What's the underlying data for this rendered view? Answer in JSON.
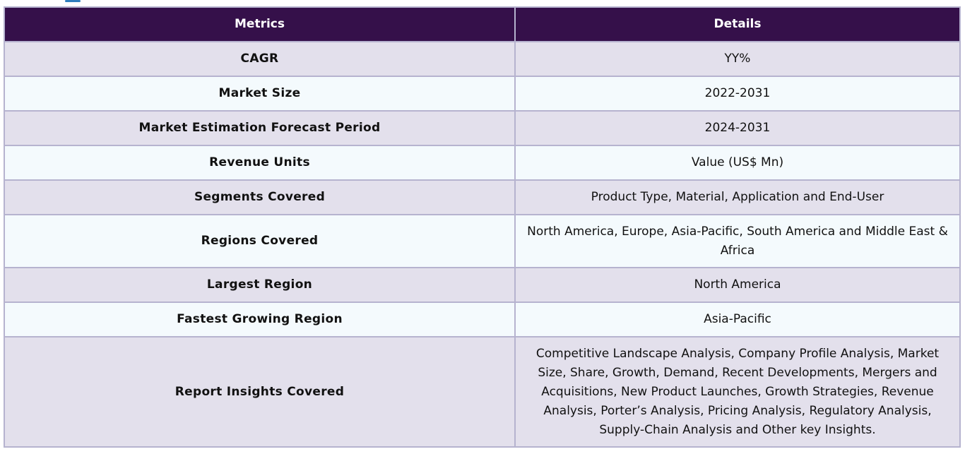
{
  "table": {
    "headers": {
      "metric": "Metrics",
      "details": "Details"
    },
    "rows": [
      {
        "metric": "CAGR",
        "details": "YY%"
      },
      {
        "metric": "Market Size",
        "details": "2022-2031"
      },
      {
        "metric": "Market Estimation Forecast Period",
        "details": "2024-2031"
      },
      {
        "metric": "Revenue Units",
        "details": "Value (US$ Mn)"
      },
      {
        "metric": "Segments Covered",
        "details": "Product Type, Material, Application and End-User"
      },
      {
        "metric": "Regions Covered",
        "details": "North America, Europe, Asia-Pacific, South America and Middle East & Africa"
      },
      {
        "metric": "Largest Region",
        "details": "North America"
      },
      {
        "metric": "Fastest Growing Region",
        "details": "Asia-Pacific"
      },
      {
        "metric": "Report Insights Covered",
        "details": "Competitive Landscape Analysis, Company Profile Analysis, Market Size, Share, Growth, Demand, Recent Developments, Mergers and Acquisitions, New Product Launches, Growth Strategies, Revenue Analysis, Porter’s Analysis, Pricing Analysis, Regulatory Analysis, Supply-Chain Analysis and Other key Insights."
      }
    ]
  },
  "colors": {
    "header_bg": "#35104a",
    "row_odd_bg": "#e3e0ec",
    "row_even_bg": "#f4fafd",
    "border": "#b6b3cf"
  }
}
